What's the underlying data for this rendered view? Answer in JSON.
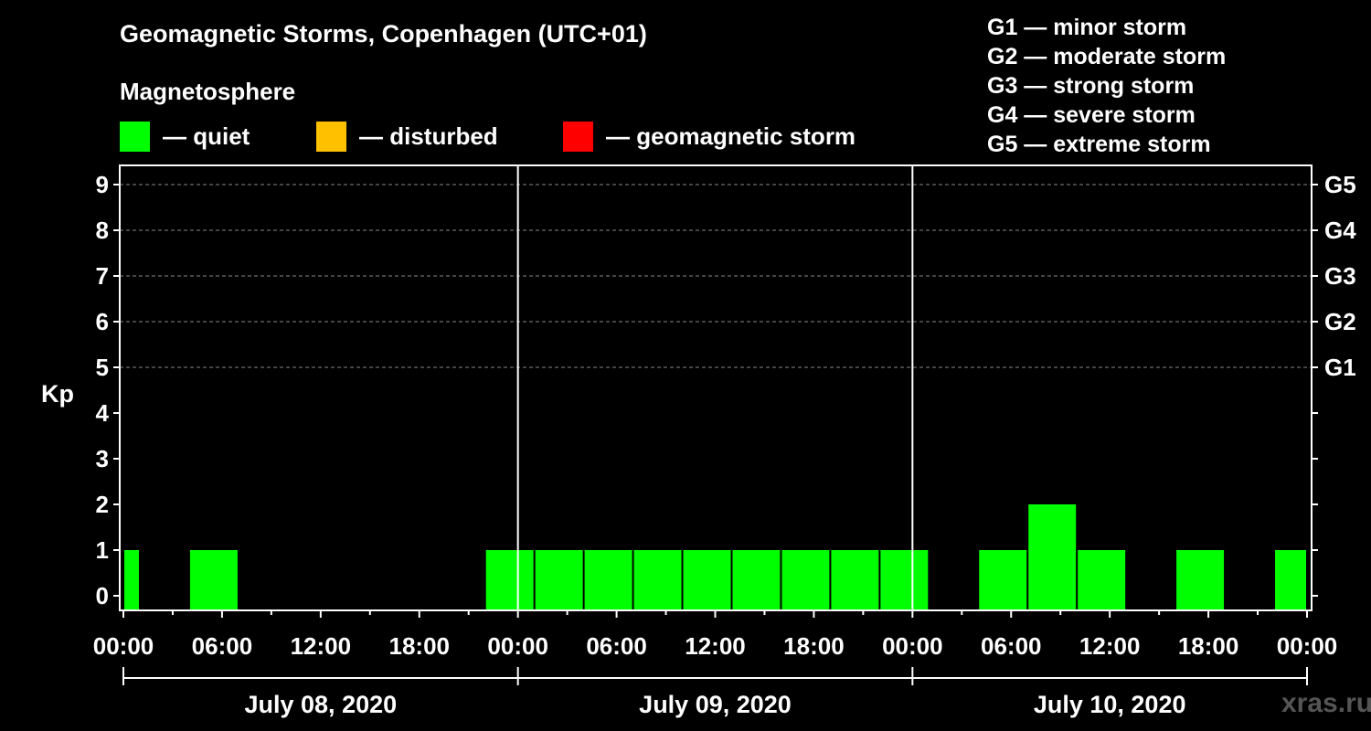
{
  "title": "Geomagnetic Storms, Copenhagen (UTC+01)",
  "subtitle": "Magnetosphere",
  "legend": [
    {
      "label": "— quiet",
      "color": "#00ff00"
    },
    {
      "label": "— disturbed",
      "color": "#ffc000"
    },
    {
      "label": "— geomagnetic storm",
      "color": "#ff0000"
    }
  ],
  "storm_scale": [
    "G1 — minor storm",
    "G2 — moderate storm",
    "G3 — strong storm",
    "G4 — severe storm",
    "G5 — extreme storm"
  ],
  "watermark": "xras.ru",
  "chart_data": {
    "type": "bar",
    "title": "Geomagnetic Storms, Copenhagen (UTC+01)",
    "ylabel": "Kp",
    "ylim": [
      0,
      9
    ],
    "xlim_hours": [
      0,
      72
    ],
    "grid": true,
    "y_ticks": [
      "0",
      "1",
      "2",
      "3",
      "4",
      "5",
      "6",
      "7",
      "8",
      "9"
    ],
    "right_axis_labels": [
      {
        "kp": 5,
        "label": "G1"
      },
      {
        "kp": 6,
        "label": "G2"
      },
      {
        "kp": 7,
        "label": "G3"
      },
      {
        "kp": 8,
        "label": "G4"
      },
      {
        "kp": 9,
        "label": "G5"
      }
    ],
    "x_tick_labels": [
      "00:00",
      "06:00",
      "12:00",
      "18:00",
      "00:00",
      "06:00",
      "12:00",
      "18:00",
      "00:00",
      "06:00",
      "12:00",
      "18:00",
      "00:00"
    ],
    "days": [
      "July 08, 2020",
      "July 09, 2020",
      "July 10, 2020"
    ],
    "bars": [
      {
        "start_hour": 0,
        "end_hour": 1,
        "kp": 1,
        "status": "quiet"
      },
      {
        "start_hour": 4,
        "end_hour": 7,
        "kp": 1,
        "status": "quiet"
      },
      {
        "start_hour": 22,
        "end_hour": 25,
        "kp": 1,
        "status": "quiet"
      },
      {
        "start_hour": 25,
        "end_hour": 28,
        "kp": 1,
        "status": "quiet"
      },
      {
        "start_hour": 28,
        "end_hour": 31,
        "kp": 1,
        "status": "quiet"
      },
      {
        "start_hour": 31,
        "end_hour": 34,
        "kp": 1,
        "status": "quiet"
      },
      {
        "start_hour": 34,
        "end_hour": 37,
        "kp": 1,
        "status": "quiet"
      },
      {
        "start_hour": 37,
        "end_hour": 40,
        "kp": 1,
        "status": "quiet"
      },
      {
        "start_hour": 40,
        "end_hour": 43,
        "kp": 1,
        "status": "quiet"
      },
      {
        "start_hour": 43,
        "end_hour": 46,
        "kp": 1,
        "status": "quiet"
      },
      {
        "start_hour": 46,
        "end_hour": 49,
        "kp": 1,
        "status": "quiet"
      },
      {
        "start_hour": 52,
        "end_hour": 55,
        "kp": 1,
        "status": "quiet"
      },
      {
        "start_hour": 55,
        "end_hour": 58,
        "kp": 2,
        "status": "quiet"
      },
      {
        "start_hour": 58,
        "end_hour": 61,
        "kp": 1,
        "status": "quiet"
      },
      {
        "start_hour": 64,
        "end_hour": 67,
        "kp": 1,
        "status": "quiet"
      },
      {
        "start_hour": 70,
        "end_hour": 72,
        "kp": 1,
        "status": "quiet"
      }
    ],
    "status_colors": {
      "quiet": "#00ff00",
      "disturbed": "#ffc000",
      "storm": "#ff0000"
    }
  }
}
